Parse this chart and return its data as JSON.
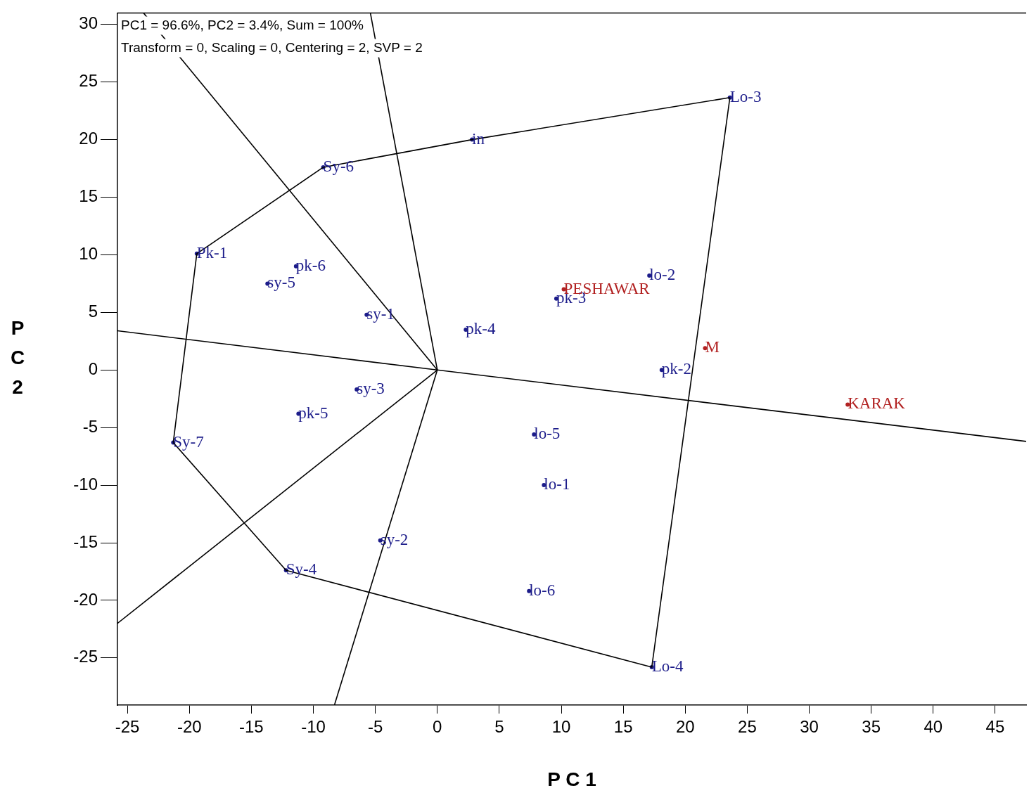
{
  "chart_data": {
    "type": "scatter",
    "xlabel": "P C 1",
    "ylabel": "P C 2",
    "annotations": [
      "PC1 = 96.6%, PC2 = 3.4%, Sum = 100%",
      "Transform = 0, Scaling = 0, Centering = 2, SVP = 2"
    ],
    "xlim": [
      -25.8,
      47.5
    ],
    "ylim": [
      -29.1,
      31
    ],
    "xticks": [
      -25,
      -20,
      -15,
      -10,
      -5,
      0,
      5,
      10,
      15,
      20,
      25,
      30,
      35,
      40,
      45
    ],
    "yticks": [
      -25,
      -20,
      -15,
      -10,
      -5,
      0,
      5,
      10,
      15,
      20,
      25,
      30
    ],
    "grid": false,
    "legend": false,
    "series": [
      {
        "type": "line",
        "color": "#000000",
        "x": [
          -21.3,
          -12.2,
          17.3,
          23.6
        ],
        "values": [
          -6.3,
          -17.4,
          -25.8,
          23.65
        ]
      },
      {
        "type": "line",
        "color": "#000000",
        "x": [
          -21.3,
          -19.4,
          -9.2,
          2.8,
          23.6
        ],
        "values": [
          -6.3,
          10.1,
          17.6,
          20.0,
          23.65
        ]
      },
      {
        "type": "line",
        "color": "#000000",
        "x": [
          -23.7,
          0
        ],
        "values": [
          31.0,
          0
        ]
      },
      {
        "type": "line",
        "color": "#000000",
        "x": [
          -5.4,
          0
        ],
        "values": [
          31.0,
          0
        ]
      },
      {
        "type": "line",
        "color": "#000000",
        "x": [
          -25.8,
          0
        ],
        "values": [
          -22.0,
          0
        ]
      },
      {
        "type": "line",
        "color": "#000000",
        "x": [
          -8.3,
          0
        ],
        "values": [
          -29.1,
          0
        ]
      },
      {
        "type": "line",
        "color": "#000000",
        "x": [
          -25.8,
          0,
          47.5
        ],
        "values": [
          3.4,
          0,
          -6.2
        ]
      },
      {
        "type": "scatter",
        "marker": "circle",
        "color": "#1c1c8a",
        "x": [
          23.6,
          -9.2,
          -19.4,
          -21.3,
          -12.2,
          17.3,
          2.8,
          -11.4,
          -13.7,
          -5.7,
          2.3,
          9.6,
          17.1,
          18.1,
          -6.5,
          -11.2,
          7.8,
          8.6,
          -4.6,
          7.4
        ],
        "values": [
          23.65,
          17.6,
          10.1,
          -6.3,
          -17.4,
          -25.8,
          20.0,
          9.0,
          7.5,
          4.8,
          3.5,
          6.2,
          8.2,
          0,
          -1.7,
          -3.8,
          -5.6,
          -10.0,
          -14.8,
          -19.2
        ],
        "value_labels": [
          "Lo-3",
          "Sy-6",
          "Pk-1",
          "Sy-7",
          "Sy-4",
          "Lo-4",
          "in",
          "pk-6",
          "sy-5",
          "sy-1",
          "pk-4",
          "pk-3",
          "lo-2",
          "pk-2",
          "sy-3",
          "pk-5",
          "lo-5",
          "lo-1",
          "sy-2",
          "lo-6"
        ]
      },
      {
        "type": "scatter",
        "marker": "circle",
        "color": "#b22222",
        "x": [
          10.2,
          21.6,
          33.1
        ],
        "values": [
          7.0,
          1.9,
          -3.0
        ],
        "value_labels": [
          "PESHAWAR",
          "M",
          "KARAK"
        ]
      }
    ]
  }
}
